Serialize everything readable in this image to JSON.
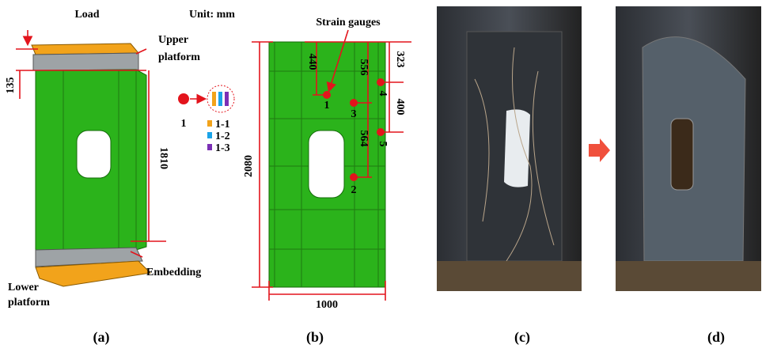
{
  "panel_a": {
    "load": "Load",
    "unit": "Unit: mm",
    "upper_platform": [
      "Upper",
      "platform"
    ],
    "dim_top": "135",
    "dim_height": "1810",
    "gauge_id": "1",
    "gauge_parts": [
      "1-1",
      "1-2",
      "1-3"
    ],
    "embedding": "Embedding",
    "lower_platform": [
      "Lower",
      "platform"
    ],
    "caption": "(a)"
  },
  "panel_b": {
    "strain_gauges": "Strain gauges",
    "dim_440": "440",
    "dim_556": "556",
    "dim_564": "564",
    "dim_323": "323",
    "dim_400": "400",
    "dim_height": "2080",
    "dim_width": "1000",
    "points": [
      "1",
      "2",
      "3",
      "4",
      "5"
    ],
    "caption": "(b)"
  },
  "panel_c": {
    "caption": "(c)"
  },
  "panel_d": {
    "caption": "(d)"
  }
}
